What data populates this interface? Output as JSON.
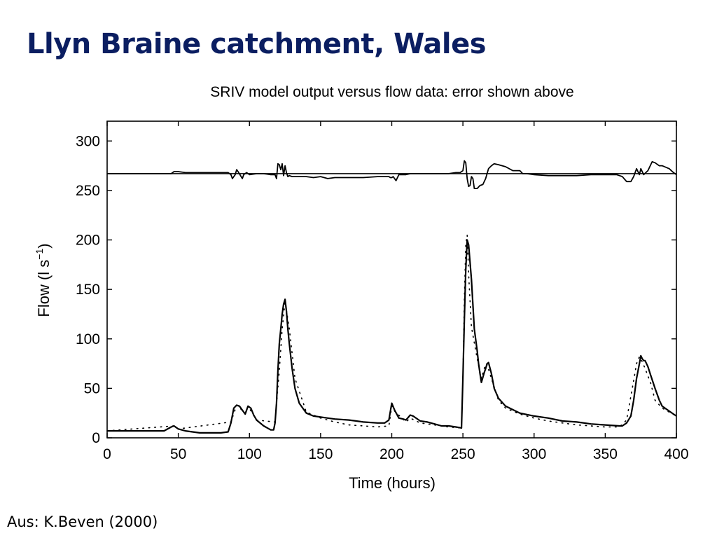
{
  "slide": {
    "title": "Llyn Braine catchment, Wales",
    "source": "Aus: K.Beven (2000)"
  },
  "chart_data": {
    "type": "line",
    "title": "SRIV model output versus flow data: error shown above",
    "xlabel": "Time (hours)",
    "ylabel": "Flow (l s",
    "ylabel_sup": "−1",
    "ylabel_close": ")",
    "xlim": [
      0,
      400
    ],
    "ylim": [
      0,
      320
    ],
    "xticks": [
      "0",
      "50",
      "100",
      "150",
      "200",
      "250",
      "300",
      "350",
      "400"
    ],
    "yticks": [
      "0",
      "50",
      "100",
      "150",
      "200",
      "250",
      "300"
    ],
    "grid": false,
    "error_baseline": 267,
    "series": [
      {
        "style": "solid",
        "x": [
          0,
          5,
          10,
          20,
          30,
          35,
          40,
          45,
          47,
          50,
          55,
          60,
          65,
          70,
          75,
          80,
          85,
          87,
          89,
          91,
          93,
          95,
          97,
          99,
          101,
          103,
          105,
          110,
          115,
          117,
          118,
          119,
          120,
          121,
          122,
          123,
          124,
          125,
          126,
          127,
          128,
          130,
          132,
          135,
          140,
          145,
          150,
          155,
          160,
          170,
          180,
          190,
          195,
          198,
          200,
          202,
          205,
          208,
          210,
          213,
          215,
          220,
          225,
          230,
          235,
          240,
          245,
          249,
          250,
          251,
          252,
          253,
          254,
          256,
          258,
          260,
          261,
          262,
          263,
          265,
          266,
          267,
          268,
          270,
          272,
          275,
          280,
          290,
          300,
          310,
          320,
          330,
          340,
          350,
          360,
          362,
          365,
          368,
          370,
          372,
          374,
          375,
          376,
          377,
          378,
          380,
          382,
          385,
          388,
          390,
          395,
          398,
          400
        ],
        "y": [
          7,
          7,
          7,
          7,
          7,
          7,
          7,
          11,
          12,
          9,
          7,
          6,
          5,
          5,
          5,
          5,
          6,
          15,
          30,
          33,
          32,
          28,
          24,
          32,
          30,
          23,
          18,
          12,
          8,
          8,
          15,
          35,
          68,
          95,
          110,
          125,
          135,
          140,
          128,
          110,
          95,
          70,
          50,
          35,
          25,
          22,
          21,
          20,
          19,
          18,
          16,
          15,
          15,
          18,
          35,
          28,
          20,
          19,
          18,
          23,
          22,
          17,
          16,
          14,
          12,
          12,
          11,
          10,
          60,
          120,
          170,
          200,
          195,
          160,
          110,
          88,
          75,
          65,
          56,
          66,
          70,
          75,
          76,
          65,
          50,
          40,
          32,
          25,
          22,
          20,
          17,
          16,
          14,
          13,
          12,
          12,
          15,
          22,
          38,
          60,
          75,
          83,
          80,
          78,
          78,
          72,
          63,
          50,
          38,
          32,
          27,
          24,
          22
        ]
      },
      {
        "style": "dotted",
        "x": [
          0,
          47,
          50,
          87,
          91,
          97,
          99,
          105,
          118,
          121,
          123,
          125,
          128,
          132,
          140,
          150,
          160,
          170,
          180,
          190,
          198,
          200,
          202,
          210,
          213,
          220,
          230,
          240,
          249,
          250,
          251,
          252,
          253,
          254,
          256,
          260,
          263,
          265,
          266,
          267,
          270,
          275,
          280,
          290,
          300,
          310,
          320,
          330,
          340,
          350,
          360,
          365,
          370,
          372,
          374,
          375,
          376,
          378,
          382,
          385,
          390,
          395,
          400
        ],
        "y": [
          7,
          12,
          9,
          16,
          33,
          25,
          32,
          18,
          16,
          68,
          110,
          138,
          110,
          60,
          26,
          20,
          16,
          13,
          12,
          11,
          12,
          32,
          27,
          16,
          20,
          15,
          13,
          11,
          10,
          60,
          140,
          195,
          205,
          165,
          112,
          80,
          60,
          70,
          75,
          74,
          60,
          38,
          30,
          24,
          20,
          17,
          15,
          13,
          12,
          11,
          11,
          18,
          58,
          75,
          82,
          79,
          77,
          70,
          55,
          38,
          30,
          26,
          22
        ]
      },
      {
        "style": "error",
        "x": [
          0,
          10,
          20,
          30,
          40,
          45,
          47,
          50,
          55,
          60,
          70,
          80,
          85,
          87,
          88,
          90,
          91,
          92,
          95,
          96,
          98,
          100,
          105,
          110,
          115,
          118,
          119,
          120,
          121,
          122,
          123,
          124,
          125,
          126,
          127,
          128,
          130,
          135,
          140,
          145,
          150,
          155,
          160,
          170,
          180,
          190,
          195,
          198,
          199,
          200,
          201,
          203,
          205,
          210,
          213,
          215,
          220,
          230,
          240,
          245,
          248,
          250,
          251,
          252,
          253,
          254,
          255,
          256,
          257,
          258,
          260,
          262,
          264,
          266,
          268,
          270,
          272,
          275,
          280,
          285,
          288,
          290,
          292,
          295,
          300,
          310,
          320,
          330,
          340,
          350,
          355,
          358,
          360,
          362,
          365,
          368,
          370,
          372,
          374,
          375,
          377,
          380,
          383,
          385,
          388,
          390,
          395,
          398,
          400
        ],
        "y": [
          267,
          267,
          267,
          267,
          267,
          267,
          269,
          269,
          268,
          268,
          268,
          268,
          268,
          266,
          262,
          266,
          271,
          269,
          262,
          266,
          268,
          266,
          267,
          267,
          266,
          266,
          262,
          277,
          276,
          271,
          277,
          265,
          275,
          268,
          264,
          265,
          264,
          264,
          264,
          263,
          264,
          262,
          263,
          263,
          263,
          264,
          264,
          264,
          263,
          263,
          264,
          260,
          266,
          266,
          267,
          267,
          267,
          267,
          267,
          268,
          268,
          270,
          280,
          278,
          262,
          254,
          255,
          264,
          262,
          252,
          252,
          255,
          256,
          262,
          272,
          275,
          277,
          276,
          274,
          270,
          270,
          270,
          267,
          267,
          266,
          265,
          265,
          265,
          266,
          266,
          266,
          266,
          265,
          264,
          259,
          259,
          264,
          272,
          266,
          272,
          266,
          270,
          279,
          278,
          275,
          275,
          272,
          268,
          266
        ]
      }
    ]
  }
}
